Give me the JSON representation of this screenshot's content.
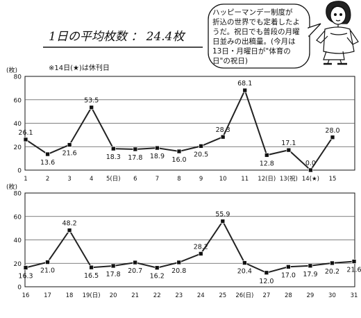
{
  "heading": {
    "title": "1日の平均枚数 ： 24.4枚"
  },
  "speech_bubble": {
    "lines": [
      "ハッピーマンデー制度が",
      "折込の世界でも定着したよ",
      "うだ。祝日でも普段の月曜",
      "日並みの出稿量。(今月は",
      "13日・月曜日が\"体育の",
      "日\"の祝日)"
    ]
  },
  "note": "※14日(★)は休刊日",
  "chart_data": [
    {
      "type": "line",
      "ylabel": "(枚)",
      "ylim": [
        0,
        80
      ],
      "yticks": [
        0,
        20,
        40,
        60,
        80
      ],
      "grid": true,
      "line_color": "#222222",
      "categories": [
        "1",
        "2",
        "3",
        "4",
        "5(日)",
        "6",
        "7",
        "8",
        "9",
        "10",
        "11",
        "12(日)",
        "13(祝)",
        "14(★)",
        "15"
      ],
      "values": [
        26.1,
        13.6,
        21.6,
        53.5,
        18.3,
        17.8,
        18.9,
        16.0,
        20.5,
        28.3,
        68.1,
        12.8,
        17.1,
        0.0,
        28.0
      ],
      "data_labels": [
        "26.1",
        "13.6",
        "21.6",
        "53.5",
        "18.3",
        "17.8",
        "18.9",
        "16.0",
        "20.5",
        "28.3",
        "68.1",
        "12.8",
        "17.1",
        "0.0",
        "28.0"
      ]
    },
    {
      "type": "line",
      "ylabel": "(枚)",
      "ylim": [
        0,
        80
      ],
      "yticks": [
        0,
        20,
        40,
        60,
        80
      ],
      "grid": true,
      "line_color": "#222222",
      "categories": [
        "16",
        "17",
        "18",
        "19(日)",
        "20",
        "21",
        "22",
        "23",
        "24",
        "25",
        "26(日)",
        "27",
        "28",
        "29",
        "30",
        "31"
      ],
      "values": [
        16.3,
        21.0,
        48.2,
        16.5,
        17.8,
        20.7,
        16.2,
        20.8,
        28.2,
        55.9,
        20.4,
        12.0,
        17.0,
        17.9,
        20.2,
        21.6
      ],
      "data_labels": [
        "16.3",
        "21.0",
        "48.2",
        "16.5",
        "17.8",
        "20.7",
        "16.2",
        "20.8",
        "28.2",
        "55.9",
        "20.4",
        "12.0",
        "17.0",
        "17.9",
        "20.2",
        "21.6"
      ]
    }
  ]
}
